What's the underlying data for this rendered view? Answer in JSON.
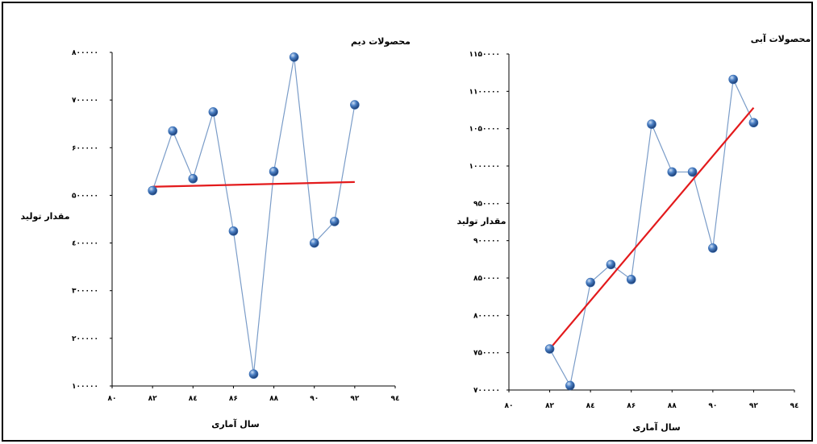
{
  "chart_data": [
    {
      "type": "line",
      "title": "محصولات دیم",
      "xlabel": "سال آماری",
      "ylabel": "مقدار تولید",
      "x_ticks": [
        80,
        82,
        84,
        86,
        88,
        90,
        92,
        94
      ],
      "x_tick_labels": [
        "۸۰",
        "۸۲",
        "۸٤",
        "۸۶",
        "۸۸",
        "۹۰",
        "۹۲",
        "۹٤"
      ],
      "y_ticks": [
        100000,
        200000,
        300000,
        400000,
        500000,
        600000,
        700000,
        800000
      ],
      "y_tick_labels": [
        "۱۰۰۰۰۰",
        "۲۰۰۰۰۰",
        "۳۰۰۰۰۰",
        "٤۰۰۰۰۰",
        "۵۰۰۰۰۰",
        "۶۰۰۰۰۰",
        "۷۰۰۰۰۰",
        "۸۰۰۰۰۰"
      ],
      "xlim": [
        80,
        94
      ],
      "ylim": [
        100000,
        800000
      ],
      "x": [
        82,
        83,
        84,
        85,
        86,
        87,
        88,
        89,
        90,
        91,
        92
      ],
      "y": [
        510000,
        635000,
        535000,
        675000,
        425000,
        125000,
        550000,
        790000,
        400000,
        445000,
        690000
      ],
      "trend": {
        "x": [
          82,
          92
        ],
        "y": [
          518000,
          528000
        ]
      },
      "line_color": "#7a9cc8",
      "marker_color": "#3a6fb5",
      "trend_color": "#e31a1c"
    },
    {
      "type": "line",
      "title": "محصولات آبی",
      "xlabel": "سال آماری",
      "ylabel": "مقدار تولید",
      "x_ticks": [
        80,
        82,
        84,
        86,
        88,
        90,
        92,
        94
      ],
      "x_tick_labels": [
        "۸۰",
        "۸۲",
        "۸٤",
        "۸۶",
        "۸۸",
        "۹۰",
        "۹۲",
        "۹٤"
      ],
      "y_ticks": [
        700000,
        750000,
        800000,
        850000,
        900000,
        950000,
        1000000,
        1050000,
        1100000,
        1150000
      ],
      "y_tick_labels": [
        "۷۰۰۰۰۰",
        "۷۵۰۰۰۰",
        "۸۰۰۰۰۰",
        "۸۵۰۰۰۰",
        "۹۰۰۰۰۰",
        "۹۵۰۰۰۰",
        "۱۰۰۰۰۰۰",
        "۱۰۵۰۰۰۰",
        "۱۱۰۰۰۰۰",
        "۱۱۵۰۰۰۰"
      ],
      "xlim": [
        80,
        94
      ],
      "ylim": [
        700000,
        1150000
      ],
      "x": [
        82,
        83,
        84,
        85,
        86,
        87,
        88,
        89,
        90,
        91,
        92
      ],
      "y": [
        755000,
        706000,
        844000,
        868000,
        848000,
        1056000,
        992000,
        992000,
        890000,
        1116000,
        1058000
      ],
      "trend": {
        "x": [
          82,
          92
        ],
        "y": [
          755000,
          1078000
        ]
      },
      "line_color": "#7a9cc8",
      "marker_color": "#3a6fb5",
      "trend_color": "#e31a1c"
    }
  ]
}
